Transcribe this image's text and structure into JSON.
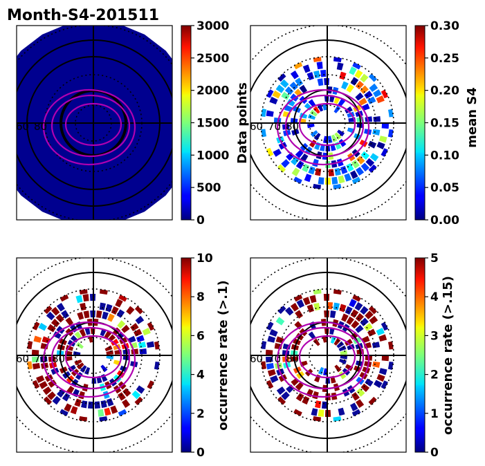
{
  "figure_title": "Month-S4-201511",
  "chart_data": [
    {
      "type": "heatmap",
      "projection": "polar",
      "panel": "top-left",
      "colorbar_label": "Data points",
      "colormap": "jet",
      "clim": [
        0,
        3000
      ],
      "ticks": [
        "0",
        "500",
        "1000",
        "1500",
        "2000",
        "2500",
        "3000"
      ],
      "lat_labels": [
        "60",
        "80"
      ],
      "fill_value": 0
    },
    {
      "type": "heatmap",
      "projection": "polar",
      "panel": "top-right",
      "colorbar_label": "mean S4",
      "colormap": "jet",
      "clim": [
        0,
        0.3
      ],
      "ticks": [
        "0.00",
        "0.05",
        "0.10",
        "0.15",
        "0.20",
        "0.25",
        "0.30"
      ],
      "lat_labels": [
        "60",
        "70",
        "80"
      ]
    },
    {
      "type": "heatmap",
      "projection": "polar",
      "panel": "bottom-left",
      "colorbar_label": "occurrence rate (>.1)",
      "colormap": "jet",
      "clim": [
        0,
        10
      ],
      "ticks": [
        "0",
        "2",
        "4",
        "6",
        "8",
        "10"
      ],
      "lat_labels": [
        "60",
        "70",
        "80"
      ]
    },
    {
      "type": "heatmap",
      "projection": "polar",
      "panel": "bottom-right",
      "colorbar_label": "occurrence rate (>.15)",
      "colormap": "jet",
      "clim": [
        0,
        5
      ],
      "ticks": [
        "0",
        "1",
        "2",
        "3",
        "4",
        "5"
      ],
      "lat_labels": [
        "60",
        "70",
        "80"
      ]
    }
  ],
  "colors": {
    "oval_contour": "#b000b0",
    "grid": "#000000",
    "fill_dark": "#00008f"
  }
}
